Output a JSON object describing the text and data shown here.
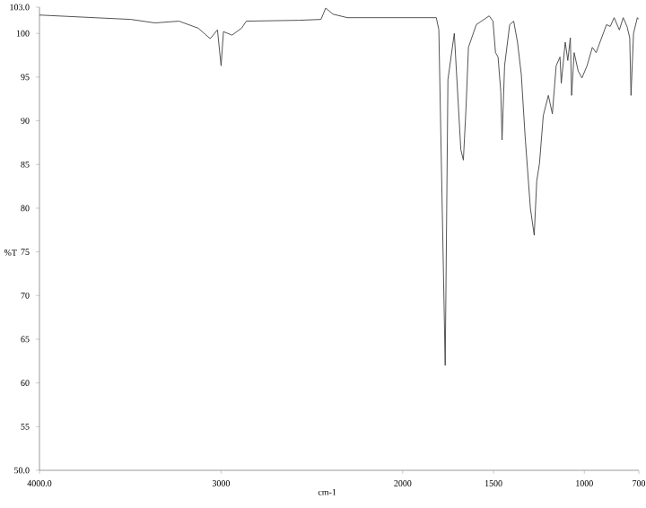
{
  "chart_data": {
    "type": "line",
    "xlabel": "cm-1",
    "ylabel": "%T",
    "x": [
      4000,
      3497,
      3364,
      3232,
      3126,
      3060,
      3020,
      3000,
      2987,
      2940,
      2887,
      2861,
      2570,
      2450,
      2424,
      2384,
      2305,
      2000,
      1815,
      1801,
      1766,
      1751,
      1716,
      1680,
      1666,
      1652,
      1638,
      1595,
      1524,
      1503,
      1489,
      1475,
      1460,
      1453,
      1439,
      1411,
      1389,
      1368,
      1347,
      1326,
      1297,
      1276,
      1262,
      1247,
      1226,
      1198,
      1176,
      1155,
      1134,
      1127,
      1105,
      1091,
      1077,
      1070,
      1056,
      1034,
      1013,
      985,
      956,
      935,
      878,
      857,
      836,
      807,
      786,
      765,
      750,
      743,
      729,
      708,
      700
    ],
    "series": [
      {
        "color": "#404040",
        "values": [
          102.1,
          101.6,
          101.2,
          101.4,
          100.6,
          99.4,
          100.4,
          96.3,
          100.2,
          99.8,
          100.6,
          101.4,
          101.5,
          101.6,
          102.9,
          102.2,
          101.8,
          101.8,
          101.8,
          100.4,
          62.0,
          94.7,
          100.0,
          86.7,
          85.5,
          91.2,
          98.4,
          101.0,
          102.0,
          101.4,
          97.8,
          97.3,
          93.3,
          87.8,
          96.3,
          101.0,
          101.4,
          99.0,
          95.3,
          88.2,
          80.0,
          76.9,
          83.1,
          85.1,
          90.6,
          92.9,
          90.8,
          96.3,
          97.3,
          94.3,
          99.0,
          96.9,
          99.5,
          92.9,
          97.8,
          95.7,
          94.9,
          96.3,
          98.4,
          97.8,
          101.0,
          100.8,
          101.8,
          100.4,
          101.8,
          100.8,
          99.5,
          92.9,
          100.0,
          101.8,
          101.6
        ]
      }
    ],
    "xlim": [
      4000,
      700
    ],
    "xticks": [
      {
        "value": 4000,
        "label": "4000.0"
      },
      3000,
      2000,
      1500,
      1000,
      700
    ],
    "ylim": [
      50,
      103
    ],
    "yticks": [
      {
        "value": 50,
        "label": "50.0"
      },
      55,
      60,
      65,
      70,
      75,
      80,
      85,
      90,
      95,
      100,
      {
        "value": 103,
        "label": "103.0"
      }
    ],
    "grid": false,
    "marker": "none",
    "line_style": "solid"
  }
}
